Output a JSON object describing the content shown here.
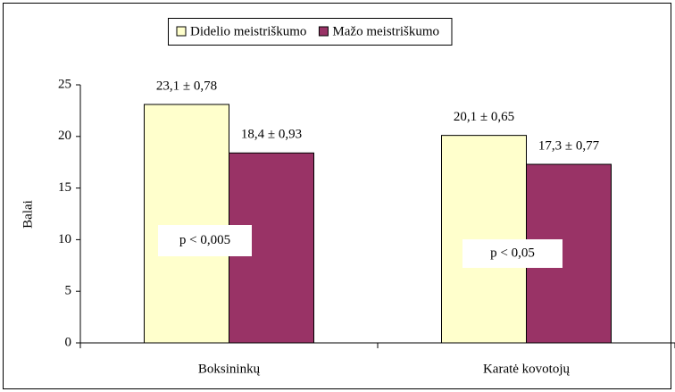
{
  "chart_data": {
    "type": "bar",
    "categories": [
      "Boksininkų",
      "Karatė kovotojų"
    ],
    "series": [
      {
        "name": "Didelio meistriškumo",
        "color": "#ffffcc",
        "values": [
          23.1,
          20.1
        ],
        "value_labels": [
          "23,1 ± 0,78",
          "20,1 ± 0,65"
        ]
      },
      {
        "name": "Mažo meistriškumo",
        "color": "#993366",
        "values": [
          18.4,
          17.3
        ],
        "value_labels": [
          "18,4 ± 0,93",
          "17,3 ± 0,77"
        ]
      }
    ],
    "ylabel": "Balai",
    "ylim": [
      0,
      25
    ],
    "yticks": [
      0,
      5,
      10,
      15,
      20,
      25
    ],
    "annotations": [
      "p < 0,005",
      "p < 0,05"
    ],
    "legend": "top"
  }
}
